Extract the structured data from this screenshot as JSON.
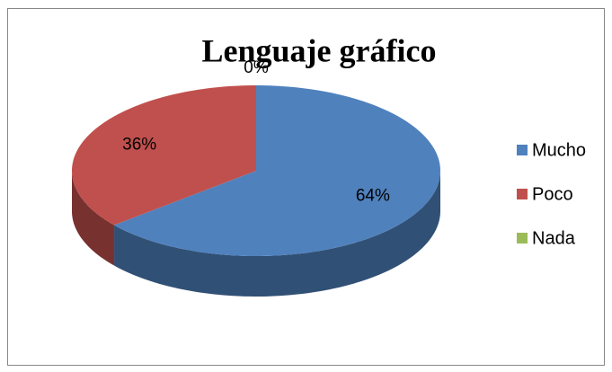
{
  "chart_data": {
    "type": "pie",
    "title": "Lenguaje gráfico",
    "categories": [
      "Mucho",
      "Poco",
      "Nada"
    ],
    "values": [
      64,
      36,
      0
    ],
    "value_labels": [
      "64%",
      "36%",
      "0%"
    ],
    "colors": [
      "#4f81bd",
      "#c0504d",
      "#9bbb59"
    ],
    "legend": "right"
  }
}
